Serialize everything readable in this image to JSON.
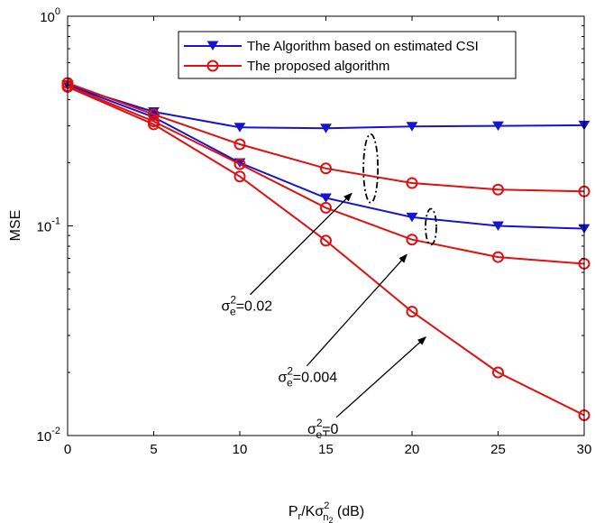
{
  "chart_data": {
    "type": "line",
    "xlabel": {
      "base": "P",
      "sub_r": "r",
      "mid": "/Kσ",
      "sup": "2",
      "sub_n": "n",
      "sub_2": "2",
      "tail": " (dB)"
    },
    "ylabel": "MSE",
    "xlim": [
      0,
      30
    ],
    "ylim": [
      0.01,
      1
    ],
    "yscale": "log",
    "grid": false,
    "legend_position": "top",
    "x": [
      0,
      5,
      10,
      15,
      20,
      25,
      30
    ],
    "x_ticks": [
      "0",
      "5",
      "10",
      "15",
      "20",
      "25",
      "30"
    ],
    "y_ticks": [
      {
        "value": 1,
        "base": "10",
        "exp": "0"
      },
      {
        "value": 0.1,
        "base": "10",
        "exp": "-1"
      },
      {
        "value": 0.01,
        "base": "10",
        "exp": "-2"
      }
    ],
    "legend": [
      {
        "label": "The Algorithm based on estimated CSI",
        "color": "#1515d0",
        "marker": "triangle-down"
      },
      {
        "label": "The proposed algorithm",
        "color": "#e01010",
        "marker": "circle"
      }
    ],
    "series": [
      {
        "group": "estimated-csi",
        "sigma": "0.02",
        "color": "#1515d0",
        "marker": "triangle-down",
        "values": [
          0.47,
          0.35,
          0.295,
          0.292,
          0.298,
          0.3,
          0.302
        ]
      },
      {
        "group": "estimated-csi",
        "sigma": "0.004",
        "color": "#1515d0",
        "marker": "triangle-down",
        "values": [
          0.47,
          0.33,
          0.2,
          0.136,
          0.11,
          0.1,
          0.097
        ]
      },
      {
        "group": "proposed",
        "sigma": "0.02",
        "color": "#e01010",
        "marker": "circle",
        "values": [
          0.48,
          0.34,
          0.245,
          0.188,
          0.16,
          0.149,
          0.146
        ]
      },
      {
        "group": "proposed",
        "sigma": "0.004",
        "color": "#e01010",
        "marker": "circle",
        "values": [
          0.465,
          0.315,
          0.197,
          0.122,
          0.086,
          0.071,
          0.066
        ]
      },
      {
        "group": "proposed",
        "sigma": "0",
        "color": "#e01010",
        "marker": "circle",
        "values": [
          0.46,
          0.305,
          0.172,
          0.085,
          0.039,
          0.02,
          0.0125
        ]
      }
    ],
    "annotations": [
      {
        "name": "sigma-0.02",
        "sym": "σ",
        "sup": "2",
        "sub": "e",
        "value": "=0.02",
        "arrow_from": [
          10.6,
          0.047
        ],
        "arrow_to": [
          16.5,
          0.143
        ],
        "ellipse_at": [
          17.6,
          0.188
        ]
      },
      {
        "name": "sigma-0.004",
        "sym": "σ",
        "sup": "2",
        "sub": "e",
        "value": "=0.004",
        "arrow_from": [
          13.9,
          0.0215
        ],
        "arrow_to": [
          19.7,
          0.073
        ],
        "ellipse_at": [
          21.1,
          0.099
        ]
      },
      {
        "name": "sigma-0",
        "sym": "σ",
        "sup": "2",
        "sub": "e",
        "value": "=0",
        "arrow_from": [
          15.6,
          0.0122
        ],
        "arrow_to": [
          20.8,
          0.0295
        ],
        "ellipse_at": null
      }
    ]
  }
}
